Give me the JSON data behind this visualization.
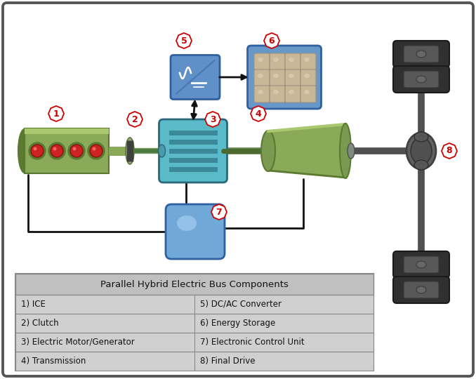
{
  "bg_color": "#ffffff",
  "table_title": "Parallel Hybrid Electric Bus Components",
  "table_rows_left": [
    "1) ICE",
    "2) Clutch",
    "3) Electric Motor/Generator",
    "4) Transmission"
  ],
  "table_rows_right": [
    "5) DC/AC Converter",
    "6) Energy Storage",
    "7) Electronic Control Unit",
    "8) Final Drive"
  ],
  "number_color": "#cc0000",
  "ice_body_color": "#8aaa5a",
  "ice_dark": "#5a7a30",
  "ice_flange_color": "#6a8a40",
  "ice_piston_color": "#cc2222",
  "motor_color": "#5abac8",
  "motor_stripe": "#3a8898",
  "motor_dark": "#2a6878",
  "conv_color": "#6090c8",
  "conv_dark": "#3060a0",
  "conv_line_color": "#8ab0e0",
  "stor_bg_color": "#6898c8",
  "stor_cell_color": "#c8b898",
  "stor_cell_dark": "#a09080",
  "ecu_color": "#70a8d8",
  "ecu_light": "#a8d0f0",
  "trans_color": "#8aaa5a",
  "trans_dark": "#5a7a30",
  "shaft_color": "#505050",
  "shaft_dark": "#303030",
  "diff_color": "#606060",
  "diff_dark": "#404040",
  "wheel_dark": "#303030",
  "wheel_rim": "#585858",
  "wire_color": "#111111",
  "table_bg": "#c8c8c8",
  "border_color": "#555555"
}
